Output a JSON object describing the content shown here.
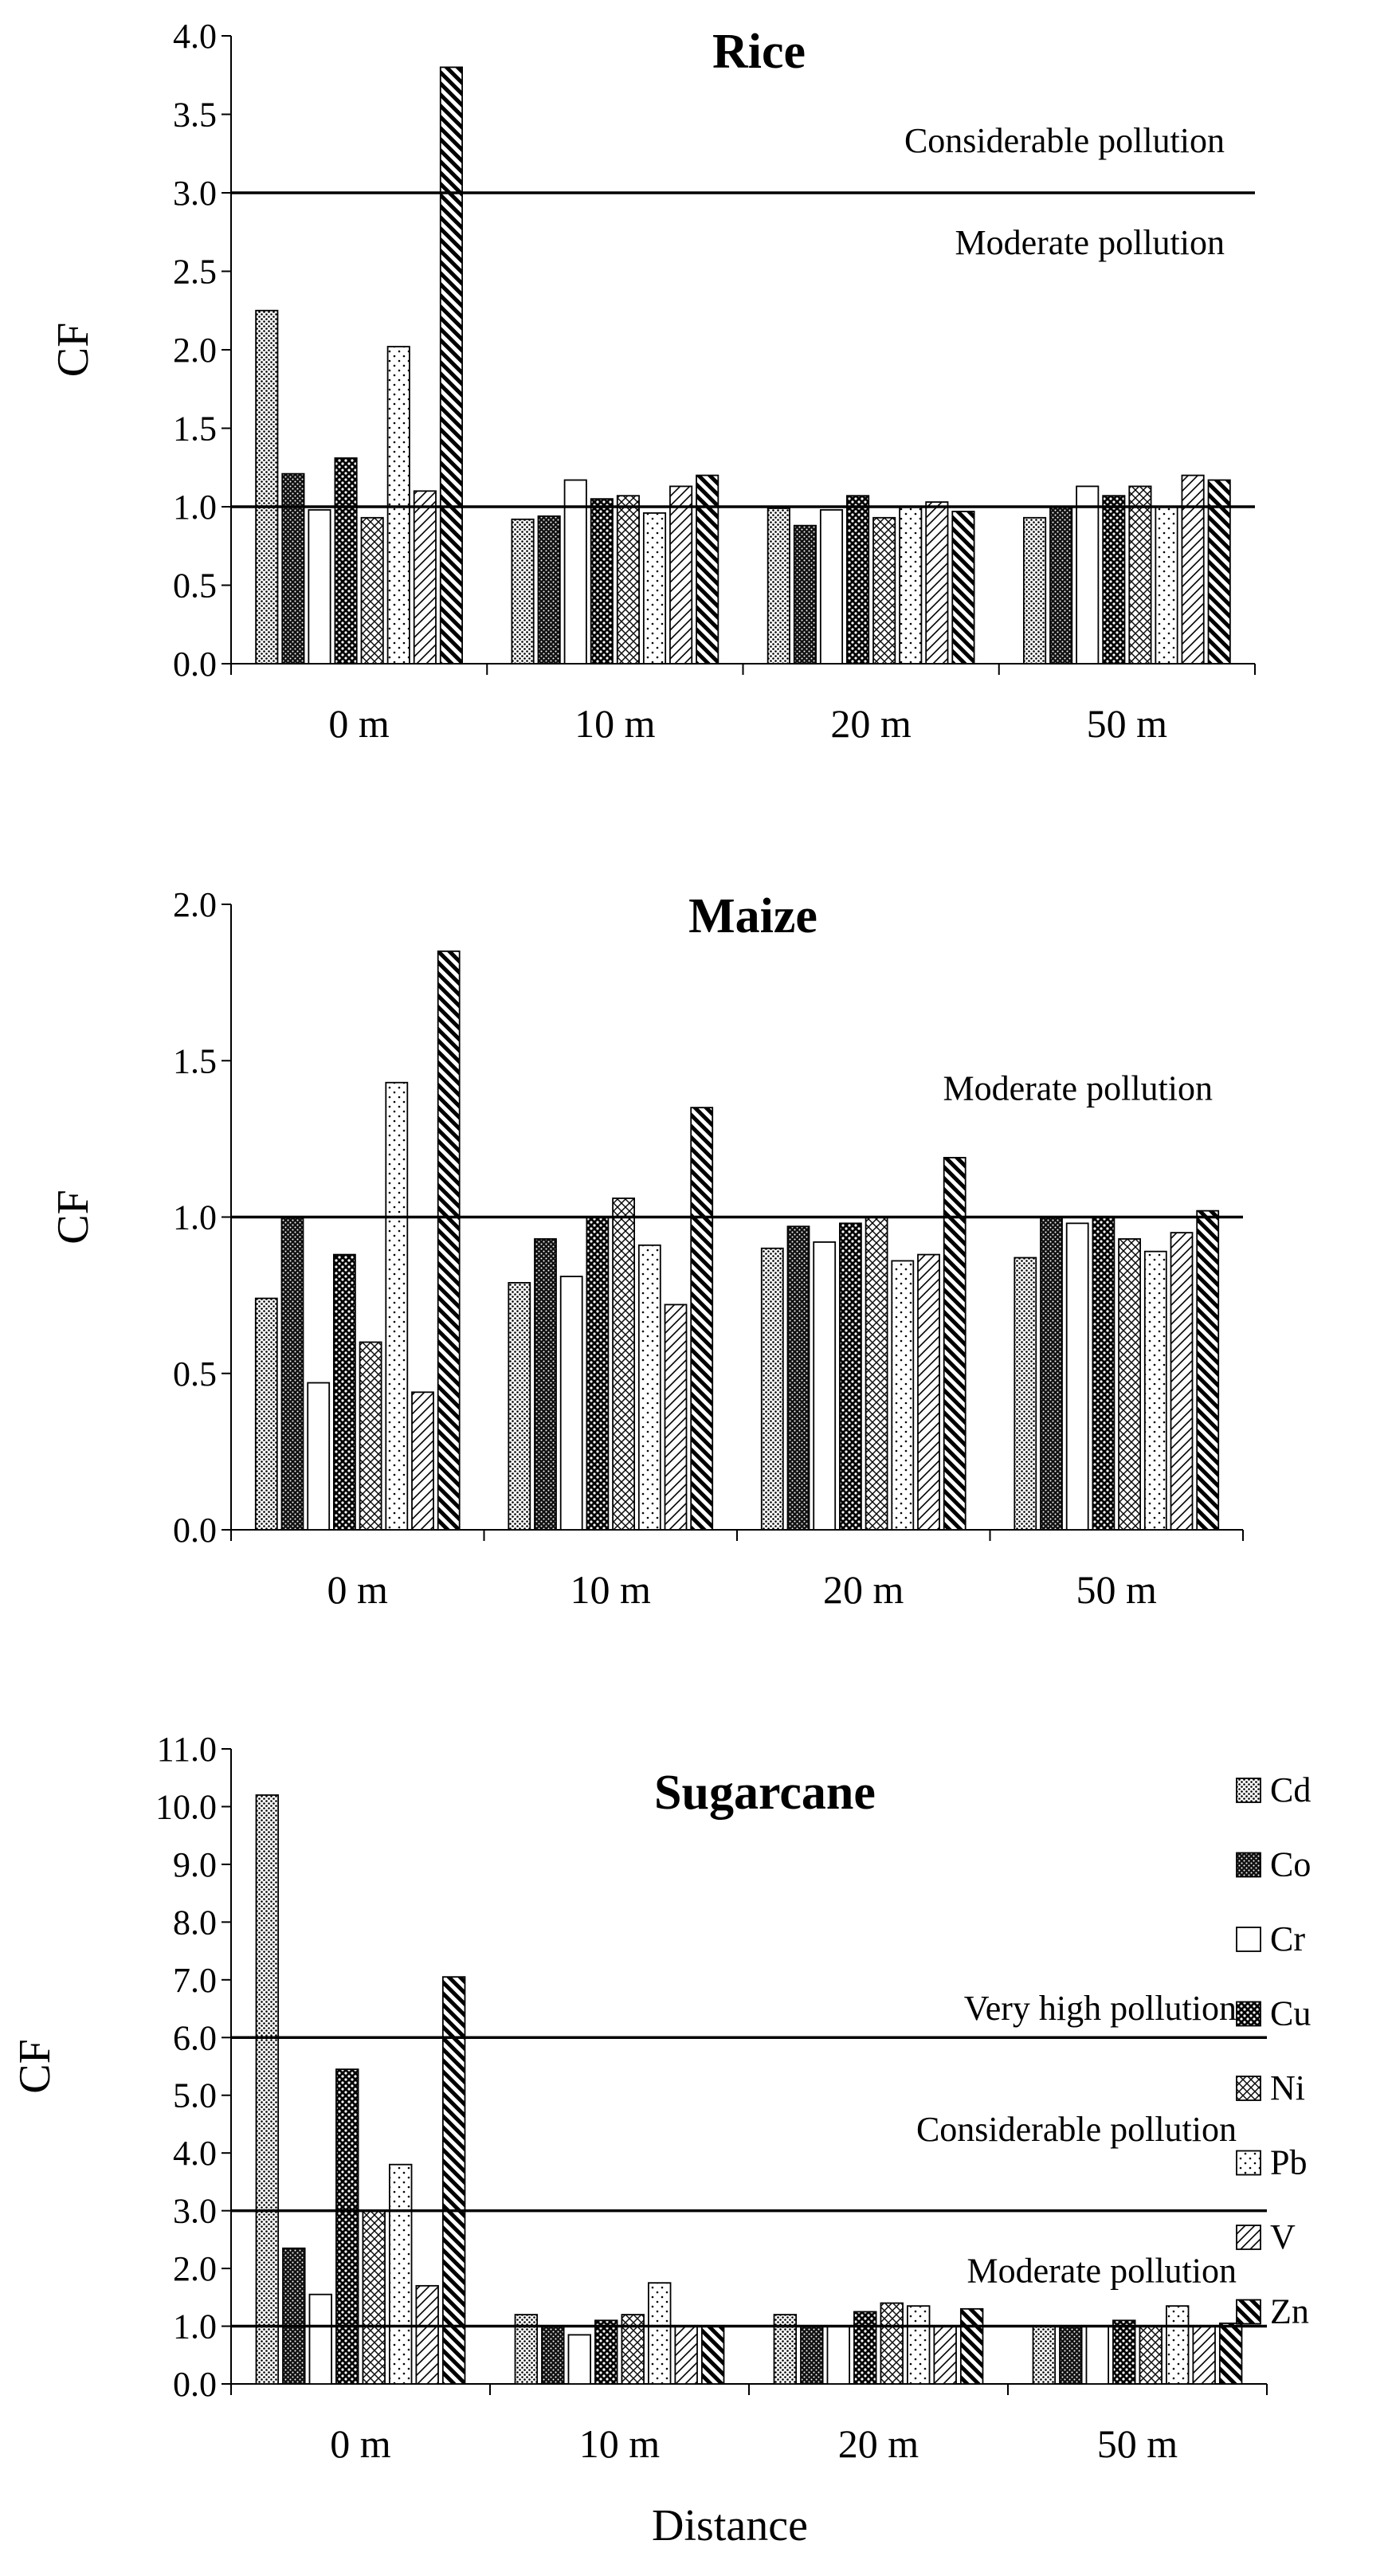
{
  "chart_data": [
    {
      "type": "bar",
      "title": "Rice",
      "ylabel": "CF",
      "xlabel": "",
      "ylim": [
        0,
        4
      ],
      "ytick_step": 0.5,
      "ytick_decimals": 1,
      "categories": [
        "0 m",
        "10 m",
        "20 m",
        "50 m"
      ],
      "series": [
        {
          "name": "Cd",
          "values": [
            2.25,
            0.92,
            0.99,
            0.93
          ]
        },
        {
          "name": "Co",
          "values": [
            1.21,
            0.94,
            0.88,
            1.0
          ]
        },
        {
          "name": "Cr",
          "values": [
            0.98,
            1.17,
            0.98,
            1.13
          ]
        },
        {
          "name": "Cu",
          "values": [
            1.31,
            1.05,
            1.07,
            1.07
          ]
        },
        {
          "name": "Ni",
          "values": [
            0.93,
            1.07,
            0.93,
            1.13
          ]
        },
        {
          "name": "Pb",
          "values": [
            2.02,
            0.96,
            1.0,
            1.0
          ]
        },
        {
          "name": "V",
          "values": [
            1.1,
            1.13,
            1.03,
            1.2
          ]
        },
        {
          "name": "Zn",
          "values": [
            3.8,
            1.2,
            0.97,
            1.17
          ]
        }
      ],
      "reference_lines": [
        1.0,
        3.0
      ],
      "zone_labels": [
        {
          "text": "Considerable pollution",
          "y": 3.33
        },
        {
          "text": "Moderate pollution",
          "y": 2.68
        }
      ]
    },
    {
      "type": "bar",
      "title": "Maize",
      "ylabel": "CF",
      "xlabel": "",
      "ylim": [
        0,
        2
      ],
      "ytick_step": 0.5,
      "ytick_decimals": 1,
      "categories": [
        "0 m",
        "10 m",
        "20 m",
        "50 m"
      ],
      "series": [
        {
          "name": "Cd",
          "values": [
            0.74,
            0.79,
            0.9,
            0.87
          ]
        },
        {
          "name": "Co",
          "values": [
            1.0,
            0.93,
            0.97,
            1.0
          ]
        },
        {
          "name": "Cr",
          "values": [
            0.47,
            0.81,
            0.92,
            0.98
          ]
        },
        {
          "name": "Cu",
          "values": [
            0.88,
            1.0,
            0.98,
            1.0
          ]
        },
        {
          "name": "Ni",
          "values": [
            0.6,
            1.06,
            1.0,
            0.93
          ]
        },
        {
          "name": "Pb",
          "values": [
            1.43,
            0.91,
            0.86,
            0.89
          ]
        },
        {
          "name": "V",
          "values": [
            0.44,
            0.72,
            0.88,
            0.95
          ]
        },
        {
          "name": "Zn",
          "values": [
            1.85,
            1.35,
            1.19,
            1.02
          ]
        }
      ],
      "reference_lines": [
        1.0
      ],
      "zone_labels": [
        {
          "text": "Moderate pollution",
          "y": 1.41
        }
      ]
    },
    {
      "type": "bar",
      "title": "Sugarcane",
      "ylabel": "CF",
      "xlabel": "Distance",
      "ylim": [
        0,
        11
      ],
      "ytick_step": 1,
      "ytick_decimals": 1,
      "categories": [
        "0 m",
        "10 m",
        "20 m",
        "50 m"
      ],
      "series": [
        {
          "name": "Cd",
          "values": [
            10.2,
            1.2,
            1.2,
            1.0
          ]
        },
        {
          "name": "Co",
          "values": [
            2.35,
            1.0,
            1.0,
            1.0
          ]
        },
        {
          "name": "Cr",
          "values": [
            1.55,
            0.85,
            1.0,
            1.0
          ]
        },
        {
          "name": "Cu",
          "values": [
            5.45,
            1.1,
            1.25,
            1.1
          ]
        },
        {
          "name": "Ni",
          "values": [
            3.0,
            1.2,
            1.4,
            1.0
          ]
        },
        {
          "name": "Pb",
          "values": [
            3.8,
            1.75,
            1.35,
            1.35
          ]
        },
        {
          "name": "V",
          "values": [
            1.7,
            1.0,
            1.0,
            1.0
          ]
        },
        {
          "name": "Zn",
          "values": [
            7.05,
            1.0,
            1.3,
            1.05
          ]
        }
      ],
      "reference_lines": [
        1.0,
        3.0,
        6.0
      ],
      "zone_labels": [
        {
          "text": "Very high pollution",
          "y": 6.5
        },
        {
          "text": "Considerable pollution",
          "y": 4.4
        },
        {
          "text": "Moderate pollution",
          "y": 1.95
        }
      ]
    }
  ],
  "legend": {
    "position": "right",
    "items": [
      "Cd",
      "Co",
      "Cr",
      "Cu",
      "Ni",
      "Pb",
      "V",
      "Zn"
    ]
  }
}
